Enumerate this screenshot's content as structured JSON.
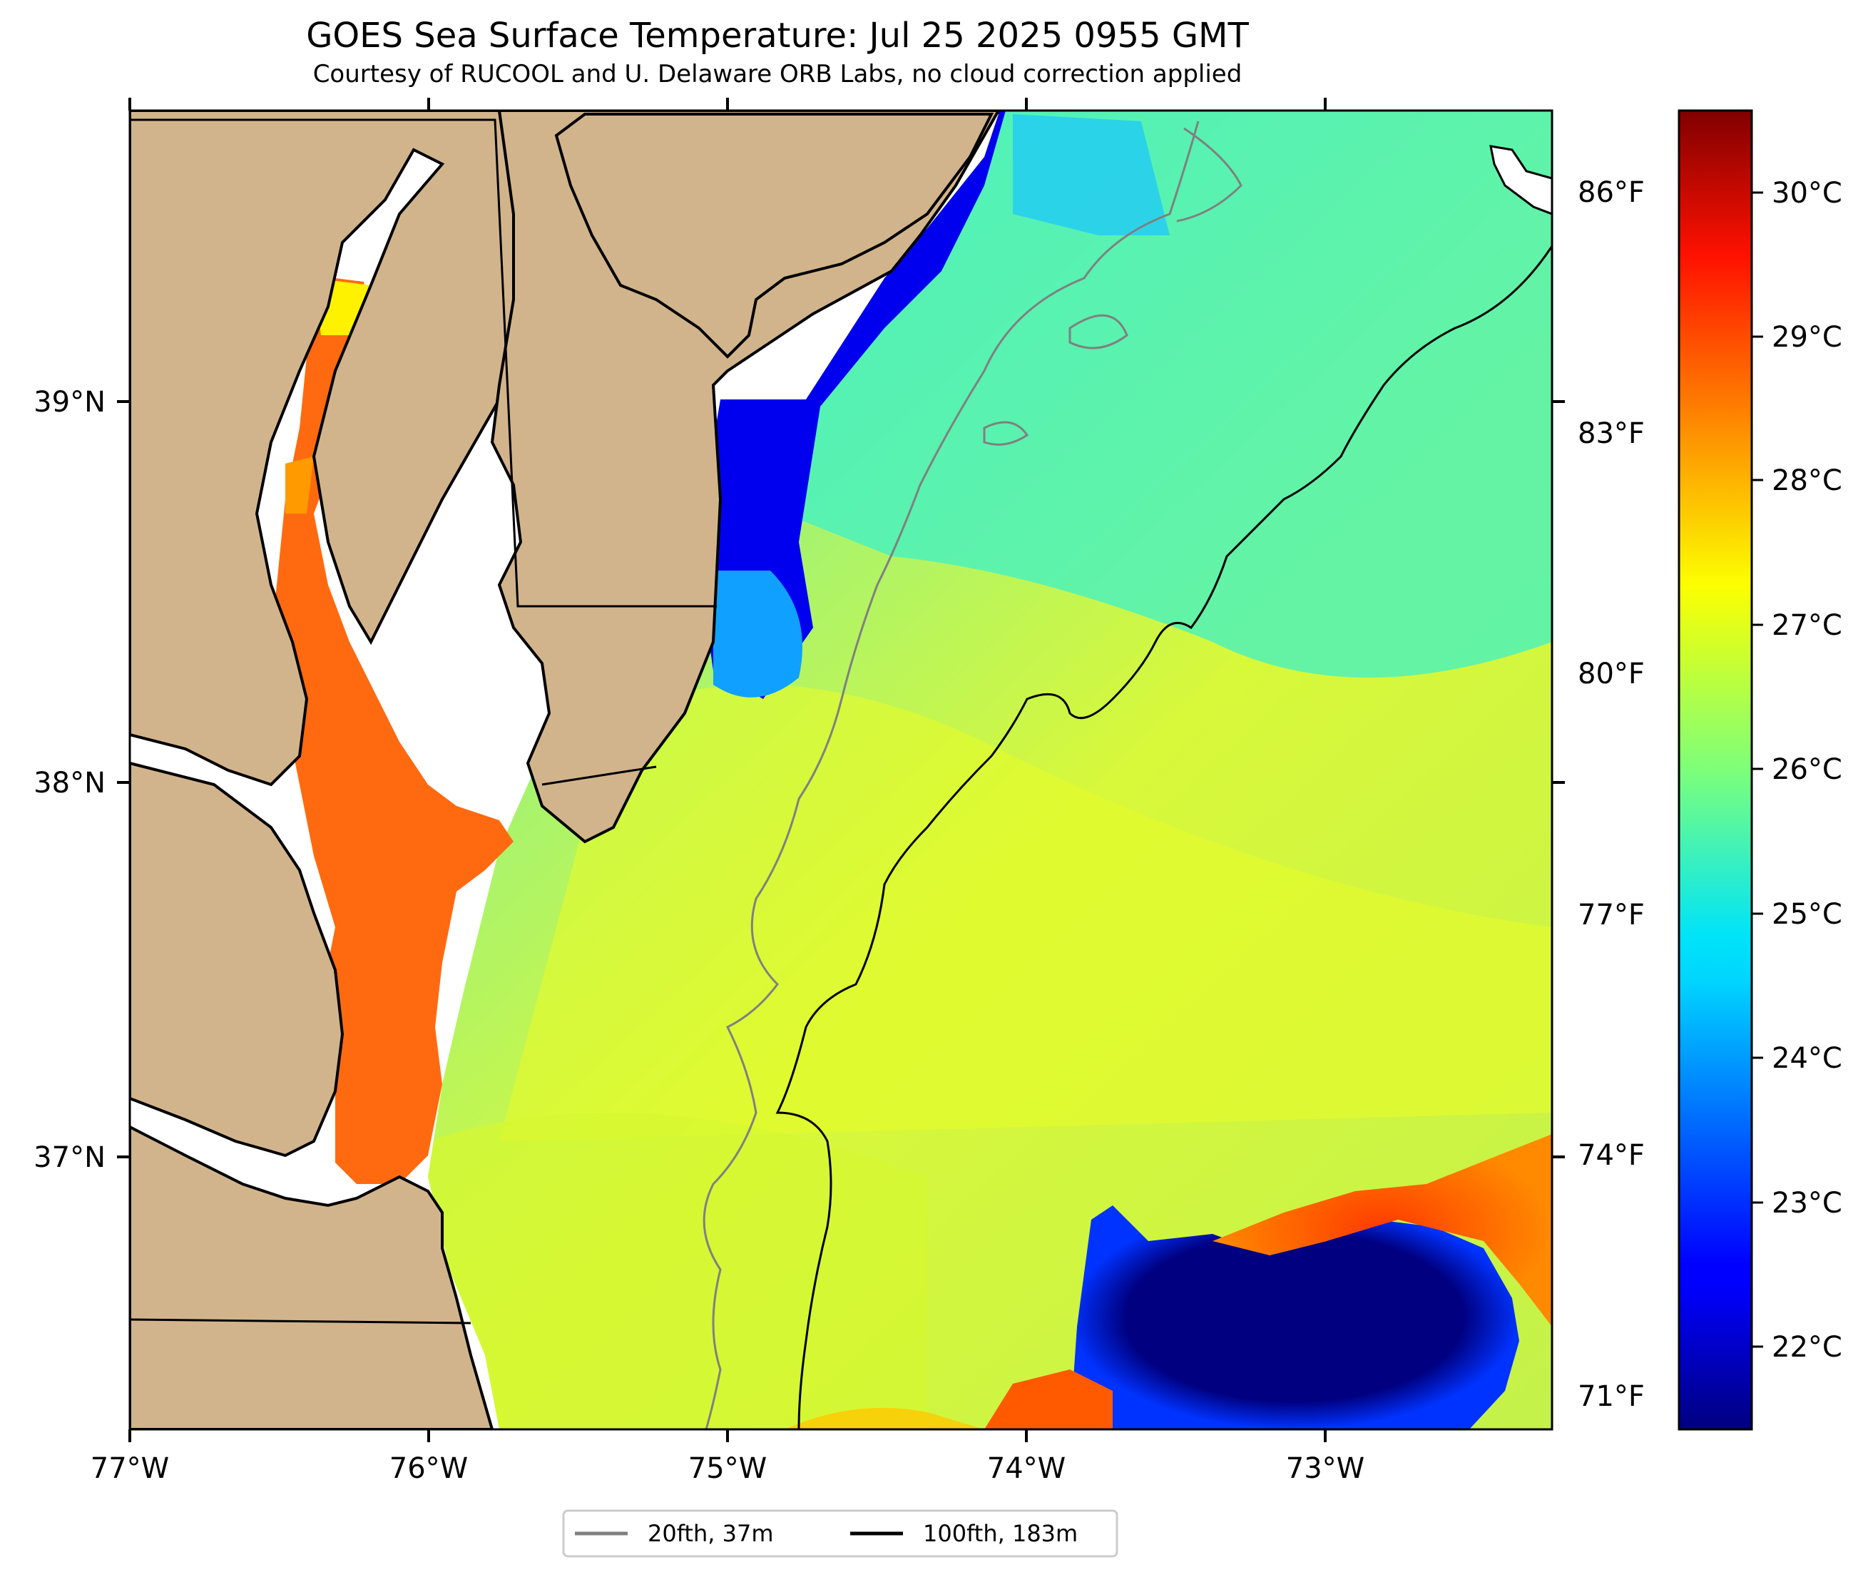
{
  "title": "GOES Sea Surface Temperature: Jul 25 2025 0955 GMT",
  "subtitle": "Courtesy of RUCOOL and U. Delaware ORB Labs, no cloud correction applied",
  "map": {
    "lon_range": [
      -77.0,
      -72.35
    ],
    "lat_range": [
      36.3,
      39.75
    ],
    "lon_ticks": [
      "77°W",
      "76°W",
      "75°W",
      "74°W",
      "73°W"
    ],
    "lat_ticks": [
      "39°N",
      "38°N",
      "37°N"
    ],
    "land_color": "#d2b48c",
    "no_data_color": "#ffffff"
  },
  "colorbar": {
    "colormap": "jet",
    "celsius_range": [
      21.5,
      30.5
    ],
    "celsius_ticks": [
      "30°C",
      "29°C",
      "28°C",
      "27°C",
      "26°C",
      "25°C",
      "24°C",
      "23°C",
      "22°C"
    ],
    "fahrenheit_ticks": [
      "86°F",
      "83°F",
      "80°F",
      "77°F",
      "74°F",
      "71°F"
    ]
  },
  "legend": {
    "items": [
      {
        "label": "20fth, 37m",
        "color": "#808080"
      },
      {
        "label": "100fth, 183m",
        "color": "#000000"
      }
    ]
  }
}
